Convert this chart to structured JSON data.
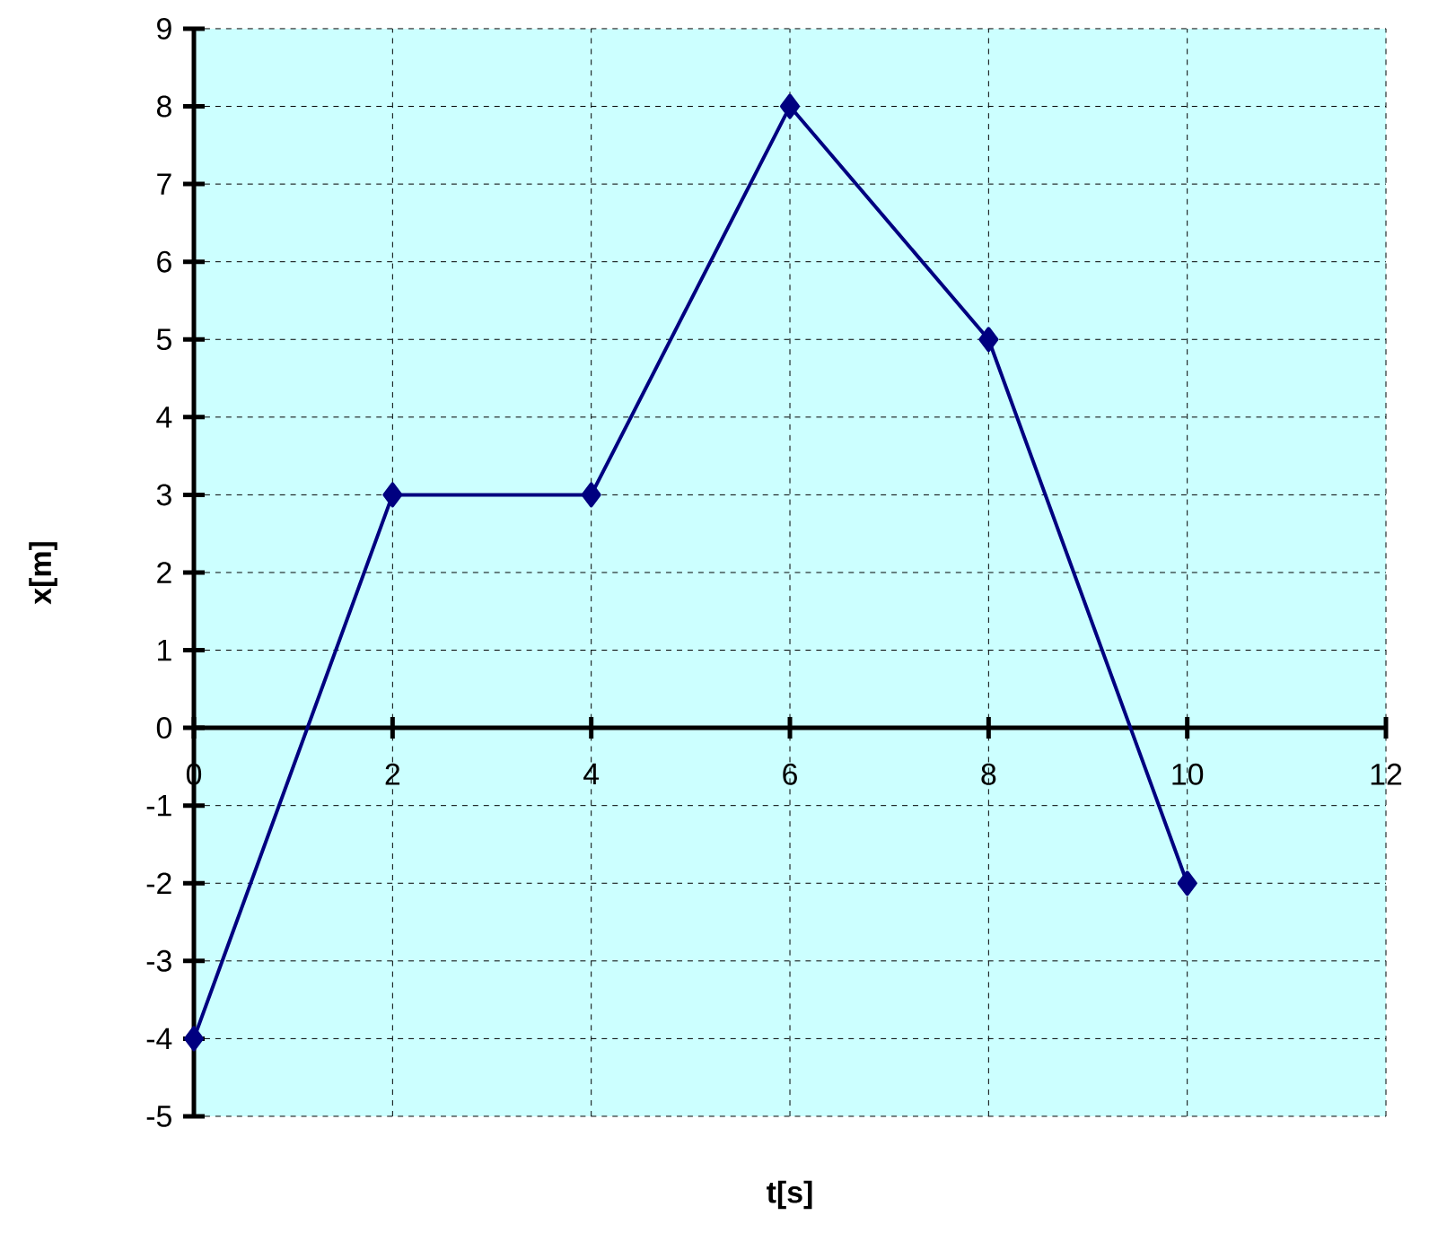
{
  "chart_data": {
    "type": "line",
    "xlabel": "t[s]",
    "ylabel": "x[m]",
    "x": [
      0,
      2,
      4,
      6,
      8,
      10
    ],
    "series": [
      {
        "color": "#000080",
        "values": [
          -4,
          3,
          3,
          8,
          5,
          -2
        ]
      }
    ],
    "xlim": [
      0,
      12
    ],
    "ylim": [
      -5,
      9
    ],
    "xticks": [
      0,
      2,
      4,
      6,
      8,
      10,
      12
    ],
    "yticks": [
      -5,
      -4,
      -3,
      -2,
      -1,
      0,
      1,
      2,
      3,
      4,
      5,
      6,
      7,
      8,
      9
    ],
    "grid": true,
    "marker": "diamond",
    "line_style": "solid"
  }
}
